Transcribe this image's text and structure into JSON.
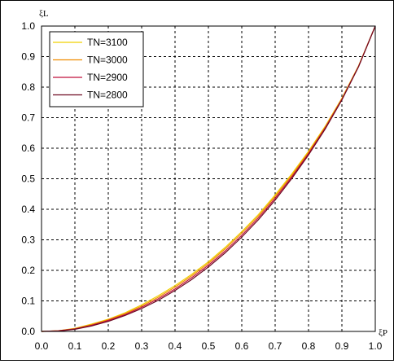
{
  "chart_data": {
    "type": "line",
    "xlabel": "ξP",
    "ylabel": "ξL",
    "xlim": [
      0,
      1
    ],
    "ylim": [
      0,
      1
    ],
    "x_ticks": [
      "0.0",
      "0.1",
      "0.2",
      "0.3",
      "0.4",
      "0.5",
      "0.6",
      "0.7",
      "0.8",
      "0.9",
      "1.0"
    ],
    "y_ticks": [
      "0.0",
      "0.1",
      "0.2",
      "0.3",
      "0.4",
      "0.5",
      "0.6",
      "0.7",
      "0.8",
      "0.9",
      "1.0"
    ],
    "grid": true,
    "legend": "top-left",
    "x": [
      0,
      0.05,
      0.1,
      0.15,
      0.2,
      0.25,
      0.3,
      0.35,
      0.4,
      0.45,
      0.5,
      0.55,
      0.6,
      0.65,
      0.7,
      0.75,
      0.8,
      0.85,
      0.9,
      0.95,
      1.0
    ],
    "series": [
      {
        "name": "TN=3100",
        "color": "#f0d000",
        "values": [
          0,
          0.002,
          0.01,
          0.024,
          0.04,
          0.061,
          0.087,
          0.117,
          0.15,
          0.187,
          0.228,
          0.275,
          0.327,
          0.383,
          0.447,
          0.516,
          0.59,
          0.672,
          0.764,
          0.87,
          1.0
        ]
      },
      {
        "name": "TN=3000",
        "color": "#f08c00",
        "values": [
          0,
          0.002,
          0.009,
          0.022,
          0.038,
          0.058,
          0.083,
          0.112,
          0.145,
          0.182,
          0.223,
          0.27,
          0.322,
          0.378,
          0.442,
          0.511,
          0.586,
          0.669,
          0.762,
          0.869,
          1.0
        ]
      },
      {
        "name": "TN=2900",
        "color": "#c0103c",
        "values": [
          0,
          0.002,
          0.008,
          0.02,
          0.036,
          0.055,
          0.079,
          0.107,
          0.139,
          0.176,
          0.217,
          0.263,
          0.315,
          0.372,
          0.436,
          0.506,
          0.582,
          0.666,
          0.76,
          0.868,
          1.0
        ]
      },
      {
        "name": "TN=2800",
        "color": "#6e0a22",
        "values": [
          0,
          0.001,
          0.007,
          0.018,
          0.033,
          0.052,
          0.075,
          0.102,
          0.134,
          0.17,
          0.211,
          0.257,
          0.309,
          0.366,
          0.43,
          0.501,
          0.578,
          0.663,
          0.758,
          0.867,
          1.0
        ]
      }
    ]
  }
}
